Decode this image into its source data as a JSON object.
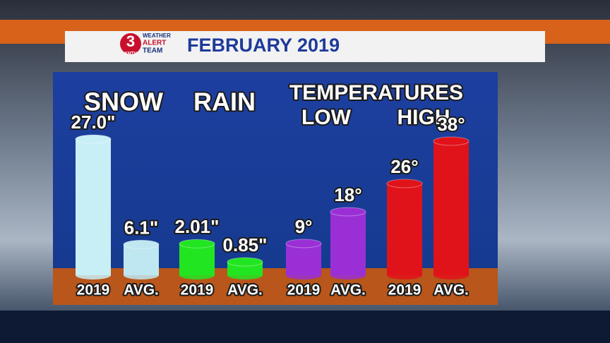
{
  "header": {
    "title": "FEBRUARY 2019",
    "logo": {
      "number": "3",
      "station": "KMTV",
      "lines": [
        "WEATHER",
        "ALERT",
        "TEAM"
      ]
    }
  },
  "group_title": "TEMPERATURES",
  "chart_data": [
    {
      "type": "bar",
      "title": "SNOW",
      "categories": [
        "2019",
        "AVG."
      ],
      "values": [
        27.0,
        6.1
      ],
      "value_labels": [
        "27.0\"",
        "6.1\""
      ],
      "colors": [
        "#c9eff6",
        "#bfe7f1"
      ],
      "ylim": [
        0,
        28
      ]
    },
    {
      "type": "bar",
      "title": "RAIN",
      "categories": [
        "2019",
        "AVG."
      ],
      "values": [
        2.01,
        0.85
      ],
      "value_labels": [
        "2.01\"",
        "0.85\""
      ],
      "colors": [
        "#22e522",
        "#22e522"
      ],
      "ylim": [
        0,
        9
      ]
    },
    {
      "type": "bar",
      "title": "LOW",
      "categories": [
        "2019",
        "AVG."
      ],
      "values": [
        9,
        18
      ],
      "value_labels": [
        "9°",
        "18°"
      ],
      "colors": [
        "#9a2fd6",
        "#9a2fd6"
      ],
      "ylim": [
        0,
        40
      ]
    },
    {
      "type": "bar",
      "title": "HIGH",
      "categories": [
        "2019",
        "AVG."
      ],
      "values": [
        26,
        38
      ],
      "value_labels": [
        "26°",
        "38°"
      ],
      "colors": [
        "#e0121a",
        "#e0121a"
      ],
      "ylim": [
        0,
        40
      ]
    }
  ]
}
